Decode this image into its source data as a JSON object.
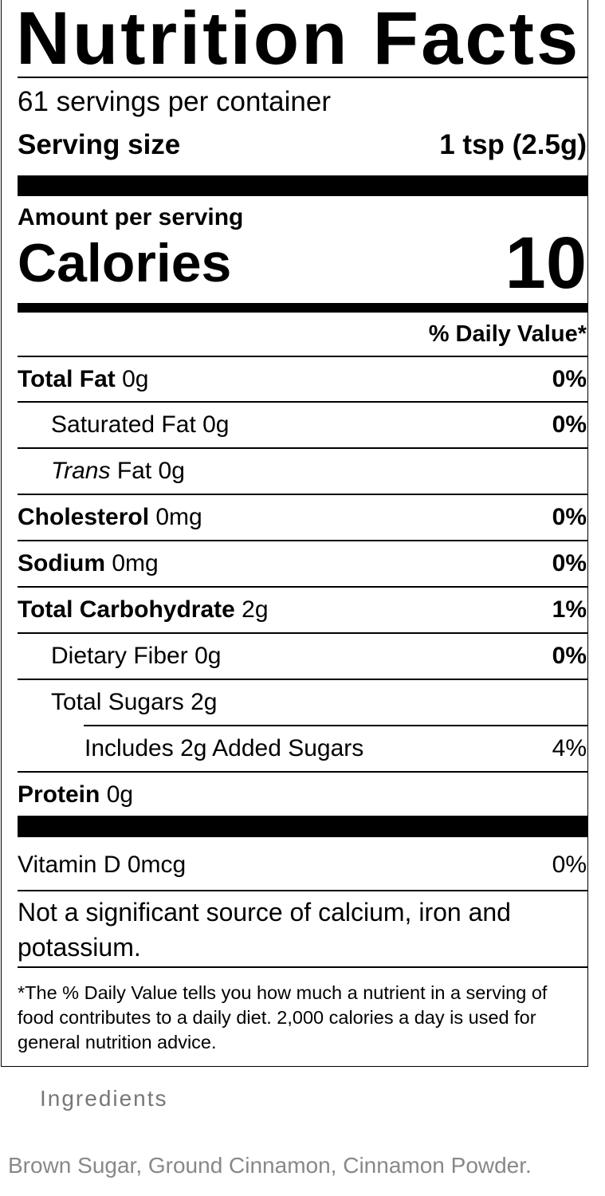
{
  "title": "Nutrition Facts",
  "servings": "61 servings per container",
  "serving_size": {
    "label": "Serving size",
    "value": "1 tsp (2.5g)"
  },
  "amount_per_serving": "Amount per serving",
  "calories": {
    "label": "Calories",
    "value": 10
  },
  "daily_value_header": "% Daily Value*",
  "nutrients": [
    {
      "name": "Total Fat",
      "amount": "0g",
      "dv": "0%"
    },
    {
      "name": "Saturated Fat",
      "amount": "0g",
      "dv": "0%"
    },
    {
      "prefix": "Trans",
      "name": "Fat",
      "amount": "0g"
    },
    {
      "name": "Cholesterol",
      "amount": "0mg",
      "dv": "0%"
    },
    {
      "name": "Sodium",
      "amount": "0mg",
      "dv": "0%"
    },
    {
      "name": "Total Carbohydrate",
      "amount": "2g",
      "dv": "1%"
    },
    {
      "name": "Dietary Fiber",
      "amount": "0g",
      "dv": "0%"
    },
    {
      "name": "Total Sugars",
      "amount": "2g"
    },
    {
      "prefix": "Includes",
      "amount": "2g",
      "name": "Added Sugars",
      "dv": "4%"
    },
    {
      "name": "Protein",
      "amount": "0g"
    }
  ],
  "vitamins": [
    {
      "name": "Vitamin D",
      "amount": "0mcg",
      "dv": "0%"
    }
  ],
  "not_significant": "Not a significant source of calcium, iron and potassium.",
  "footnote": "*The % Daily Value tells you how much a nutrient in a serving of food contributes to a daily diet. 2,000 calories a day is used for general nutrition advice.",
  "ingredients": {
    "heading": "Ingredients",
    "text": "Brown Sugar, Ground Cinnamon, Cinnamon Powder."
  }
}
